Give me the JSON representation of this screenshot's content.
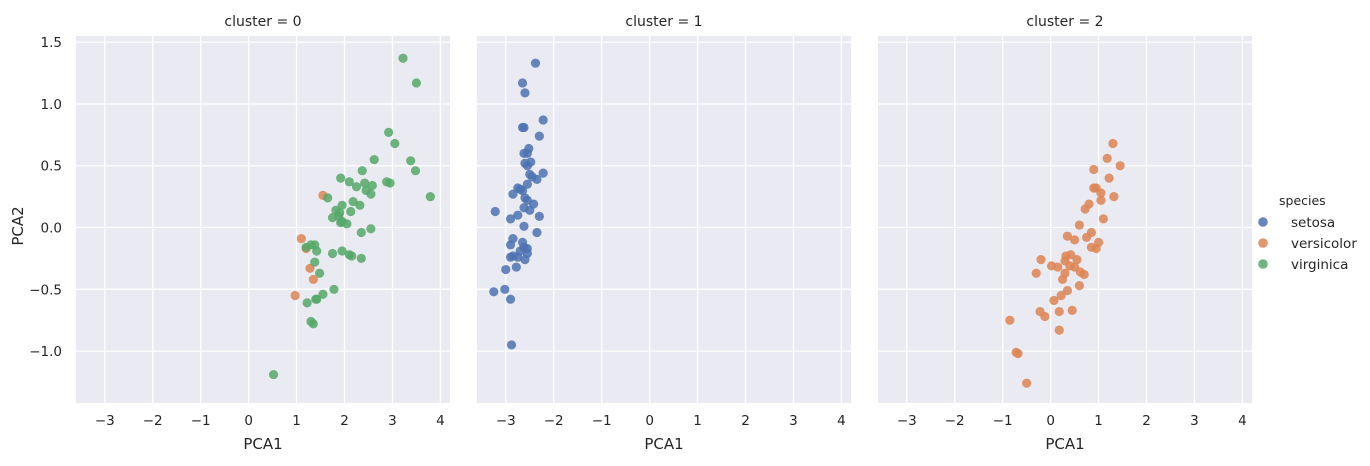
{
  "chart_data": {
    "type": "scatter",
    "xlabel": "PCA1",
    "ylabel": "PCA2",
    "xlim": [
      -3.6,
      4.2
    ],
    "ylim": [
      -1.42,
      1.55
    ],
    "xticks": [
      -3,
      -2,
      -1,
      0,
      1,
      2,
      3,
      4
    ],
    "xtick_labels": [
      "−3",
      "−2",
      "−1",
      "0",
      "1",
      "2",
      "3",
      "4"
    ],
    "yticks": [
      -1.0,
      -0.5,
      0.0,
      0.5,
      1.0,
      1.5
    ],
    "ytick_labels": [
      "−1.0",
      "−0.5",
      "0.0",
      "0.5",
      "1.0",
      "1.5"
    ],
    "grid": true,
    "legend": {
      "title": "species",
      "position": "right",
      "entries": [
        {
          "label": "setosa",
          "color": "#4c72b0"
        },
        {
          "label": "versicolor",
          "color": "#dd8452"
        },
        {
          "label": "virginica",
          "color": "#55a868"
        }
      ]
    },
    "panels": [
      {
        "title": "cluster = 0",
        "series": [
          {
            "name": "versicolor",
            "color": "#dd8452",
            "points": [
              [
                1.1,
                -0.09
              ],
              [
                1.55,
                0.26
              ],
              [
                0.97,
                -0.55
              ],
              [
                1.28,
                -0.33
              ],
              [
                1.35,
                -0.42
              ],
              [
                1.2,
                -0.17
              ]
            ]
          },
          {
            "name": "virginica",
            "color": "#55a868",
            "points": [
              [
                3.22,
                1.37
              ],
              [
                3.5,
                1.17
              ],
              [
                2.92,
                0.77
              ],
              [
                3.05,
                0.68
              ],
              [
                2.62,
                0.55
              ],
              [
                3.38,
                0.54
              ],
              [
                3.48,
                0.46
              ],
              [
                2.37,
                0.46
              ],
              [
                1.92,
                0.4
              ],
              [
                2.1,
                0.37
              ],
              [
                2.42,
                0.36
              ],
              [
                2.58,
                0.34
              ],
              [
                2.88,
                0.37
              ],
              [
                2.95,
                0.36
              ],
              [
                2.25,
                0.33
              ],
              [
                2.45,
                0.3
              ],
              [
                2.55,
                0.27
              ],
              [
                1.65,
                0.24
              ],
              [
                3.79,
                0.25
              ],
              [
                2.18,
                0.21
              ],
              [
                2.32,
                0.18
              ],
              [
                1.95,
                0.18
              ],
              [
                1.82,
                0.14
              ],
              [
                2.13,
                0.13
              ],
              [
                1.88,
                0.09
              ],
              [
                1.75,
                0.08
              ],
              [
                1.92,
                0.04
              ],
              [
                1.95,
                0.05
              ],
              [
                2.55,
                -0.01
              ],
              [
                2.05,
                0.03
              ],
              [
                2.35,
                -0.04
              ],
              [
                1.9,
                0.12
              ],
              [
                1.38,
                -0.14
              ],
              [
                1.2,
                -0.16
              ],
              [
                1.3,
                -0.14
              ],
              [
                1.42,
                -0.19
              ],
              [
                1.95,
                -0.19
              ],
              [
                2.1,
                -0.22
              ],
              [
                2.15,
                -0.23
              ],
              [
                1.75,
                -0.21
              ],
              [
                2.35,
                -0.25
              ],
              [
                1.38,
                -0.28
              ],
              [
                1.48,
                -0.37
              ],
              [
                1.55,
                -0.54
              ],
              [
                1.78,
                -0.5
              ],
              [
                1.42,
                -0.58
              ],
              [
                1.4,
                -0.58
              ],
              [
                1.22,
                -0.61
              ],
              [
                1.3,
                -0.76
              ],
              [
                1.35,
                -0.78
              ],
              [
                0.52,
                -1.19
              ]
            ]
          }
        ]
      },
      {
        "title": "cluster = 1",
        "series": [
          {
            "name": "setosa",
            "color": "#4c72b0",
            "points": [
              [
                -2.38,
                1.33
              ],
              [
                -2.65,
                1.17
              ],
              [
                -2.6,
                1.09
              ],
              [
                -2.22,
                0.87
              ],
              [
                -2.62,
                0.81
              ],
              [
                -2.65,
                0.81
              ],
              [
                -2.3,
                0.74
              ],
              [
                -2.52,
                0.64
              ],
              [
                -2.55,
                0.6
              ],
              [
                -2.62,
                0.6
              ],
              [
                -2.48,
                0.53
              ],
              [
                -2.55,
                0.5
              ],
              [
                -2.6,
                0.52
              ],
              [
                -2.22,
                0.44
              ],
              [
                -2.5,
                0.43
              ],
              [
                -2.55,
                0.35
              ],
              [
                -2.35,
                0.39
              ],
              [
                -2.45,
                0.41
              ],
              [
                -2.85,
                0.27
              ],
              [
                -2.75,
                0.32
              ],
              [
                -2.7,
                0.31
              ],
              [
                -2.65,
                0.3
              ],
              [
                -2.6,
                0.24
              ],
              [
                -2.55,
                0.22
              ],
              [
                -2.42,
                0.19
              ],
              [
                -2.62,
                0.16
              ],
              [
                -2.5,
                0.14
              ],
              [
                -3.22,
                0.13
              ],
              [
                -2.75,
                0.1
              ],
              [
                -2.3,
                0.09
              ],
              [
                -2.9,
                0.07
              ],
              [
                -2.62,
                0.01
              ],
              [
                -2.35,
                -0.04
              ],
              [
                -2.85,
                -0.09
              ],
              [
                -2.65,
                -0.12
              ],
              [
                -2.9,
                -0.14
              ],
              [
                -2.62,
                -0.16
              ],
              [
                -2.55,
                -0.17
              ],
              [
                -2.7,
                -0.19
              ],
              [
                -2.55,
                -0.21
              ],
              [
                -2.85,
                -0.23
              ],
              [
                -2.75,
                -0.24
              ],
              [
                -2.9,
                -0.24
              ],
              [
                -2.6,
                -0.26
              ],
              [
                -2.78,
                -0.32
              ],
              [
                -3.0,
                -0.34
              ],
              [
                -3.25,
                -0.52
              ],
              [
                -3.02,
                -0.5
              ],
              [
                -2.9,
                -0.58
              ],
              [
                -2.88,
                -0.95
              ]
            ]
          }
        ]
      },
      {
        "title": "cluster = 2",
        "series": [
          {
            "name": "versicolor",
            "color": "#dd8452",
            "points": [
              [
                1.3,
                0.68
              ],
              [
                1.18,
                0.56
              ],
              [
                1.45,
                0.5
              ],
              [
                0.9,
                0.47
              ],
              [
                1.22,
                0.4
              ],
              [
                0.9,
                0.32
              ],
              [
                0.95,
                0.32
              ],
              [
                1.05,
                0.28
              ],
              [
                1.32,
                0.25
              ],
              [
                1.05,
                0.22
              ],
              [
                0.8,
                0.19
              ],
              [
                0.72,
                0.15
              ],
              [
                1.1,
                0.07
              ],
              [
                0.6,
                0.02
              ],
              [
                0.85,
                -0.04
              ],
              [
                0.35,
                -0.07
              ],
              [
                0.75,
                -0.08
              ],
              [
                0.5,
                -0.1
              ],
              [
                1.0,
                -0.12
              ],
              [
                0.95,
                -0.17
              ],
              [
                0.85,
                -0.16
              ],
              [
                0.42,
                -0.22
              ],
              [
                0.32,
                -0.23
              ],
              [
                -0.2,
                -0.26
              ],
              [
                0.55,
                -0.26
              ],
              [
                0.3,
                -0.27
              ],
              [
                0.02,
                -0.31
              ],
              [
                0.15,
                -0.32
              ],
              [
                0.5,
                -0.32
              ],
              [
                0.4,
                -0.31
              ],
              [
                0.62,
                -0.36
              ],
              [
                0.3,
                -0.37
              ],
              [
                -0.3,
                -0.37
              ],
              [
                0.7,
                -0.38
              ],
              [
                0.25,
                -0.42
              ],
              [
                0.6,
                -0.47
              ],
              [
                0.35,
                -0.51
              ],
              [
                0.22,
                -0.55
              ],
              [
                0.07,
                -0.59
              ],
              [
                0.45,
                -0.67
              ],
              [
                -0.22,
                -0.68
              ],
              [
                -0.12,
                -0.72
              ],
              [
                0.18,
                -0.68
              ],
              [
                -0.85,
                -0.75
              ],
              [
                0.18,
                -0.83
              ],
              [
                -0.72,
                -1.01
              ],
              [
                -0.68,
                -1.02
              ],
              [
                -0.5,
                -1.26
              ]
            ]
          }
        ]
      }
    ]
  }
}
